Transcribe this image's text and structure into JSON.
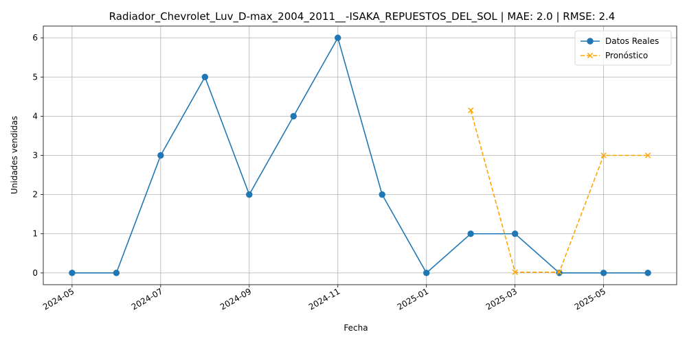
{
  "chart_data": {
    "type": "line",
    "title": "Radiador_Chevrolet_Luv_D-max_2004_2011__-ISAKA_REPUESTOS_DEL_SOL | MAE: 2.0 | RMSE: 2.4",
    "xlabel": "Fecha",
    "ylabel": "Unidades vendidas",
    "ylim": [
      -0.3,
      6.3
    ],
    "yticks": [
      0,
      1,
      2,
      3,
      4,
      5,
      6
    ],
    "xtick_labels": [
      "2024-05",
      "2024-07",
      "2024-09",
      "2024-11",
      "2025-01",
      "2025-03",
      "2025-05"
    ],
    "grid": true,
    "legend_position": "top-right",
    "series": [
      {
        "name": "Datos Reales",
        "color": "#1f77b4",
        "line_style": "solid",
        "marker": "circle",
        "x": [
          "2024-05",
          "2024-06",
          "2024-07",
          "2024-08",
          "2024-09",
          "2024-10",
          "2024-11",
          "2024-12",
          "2025-01",
          "2025-02",
          "2025-03",
          "2025-04",
          "2025-05",
          "2025-06"
        ],
        "values": [
          0,
          0,
          3,
          5,
          2,
          4,
          6,
          2,
          0,
          1,
          1,
          0,
          0,
          0
        ]
      },
      {
        "name": "Pronóstico",
        "color": "#ffa500",
        "line_style": "dashed",
        "marker": "x",
        "x": [
          "2025-02",
          "2025-03",
          "2025-04",
          "2025-05",
          "2025-06"
        ],
        "values": [
          4.15,
          0.02,
          0.02,
          3.0,
          3.0
        ]
      }
    ]
  }
}
